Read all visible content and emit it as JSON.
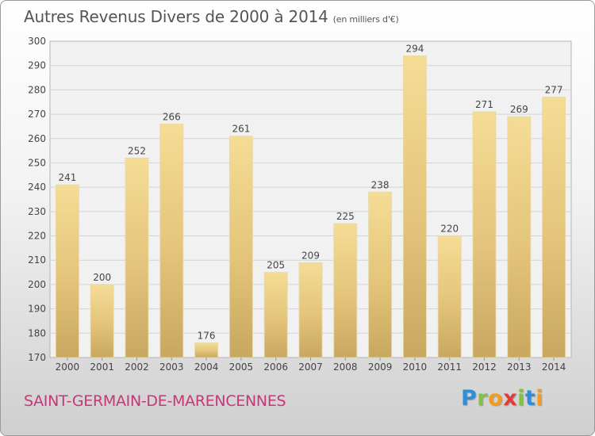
{
  "header": {
    "title": "Autres Revenus Divers de 2000 à 2014",
    "subtitle": "(en milliers d'€)"
  },
  "footer": {
    "commune": "SAINT-GERMAIN-DE-MARENCENNES",
    "logo_letters": [
      "P",
      "r",
      "o",
      "x",
      "i",
      "t",
      "i"
    ],
    "logo_colors": [
      "#2f8fd6",
      "#7fc242",
      "#f39c1e",
      "#e03c3c",
      "#7fc242",
      "#2f8fd6",
      "#f39c1e"
    ]
  },
  "chart_data": {
    "type": "bar",
    "categories": [
      "2000",
      "2001",
      "2002",
      "2003",
      "2004",
      "2005",
      "2006",
      "2007",
      "2008",
      "2009",
      "2010",
      "2011",
      "2012",
      "2013",
      "2014"
    ],
    "values": [
      241,
      200,
      252,
      266,
      176,
      261,
      205,
      209,
      225,
      238,
      294,
      220,
      271,
      269,
      277
    ],
    "data_labels": [
      "241",
      "200",
      "252",
      "266",
      "176",
      "261",
      "205",
      "209",
      "225",
      "238",
      "294",
      "220",
      "271",
      "269",
      "277"
    ],
    "yticks": [
      170,
      180,
      190,
      200,
      210,
      220,
      230,
      240,
      250,
      260,
      270,
      280,
      290,
      300
    ],
    "ylim": [
      170,
      300
    ],
    "grid": true,
    "bar_color": "#e9cf7f"
  }
}
